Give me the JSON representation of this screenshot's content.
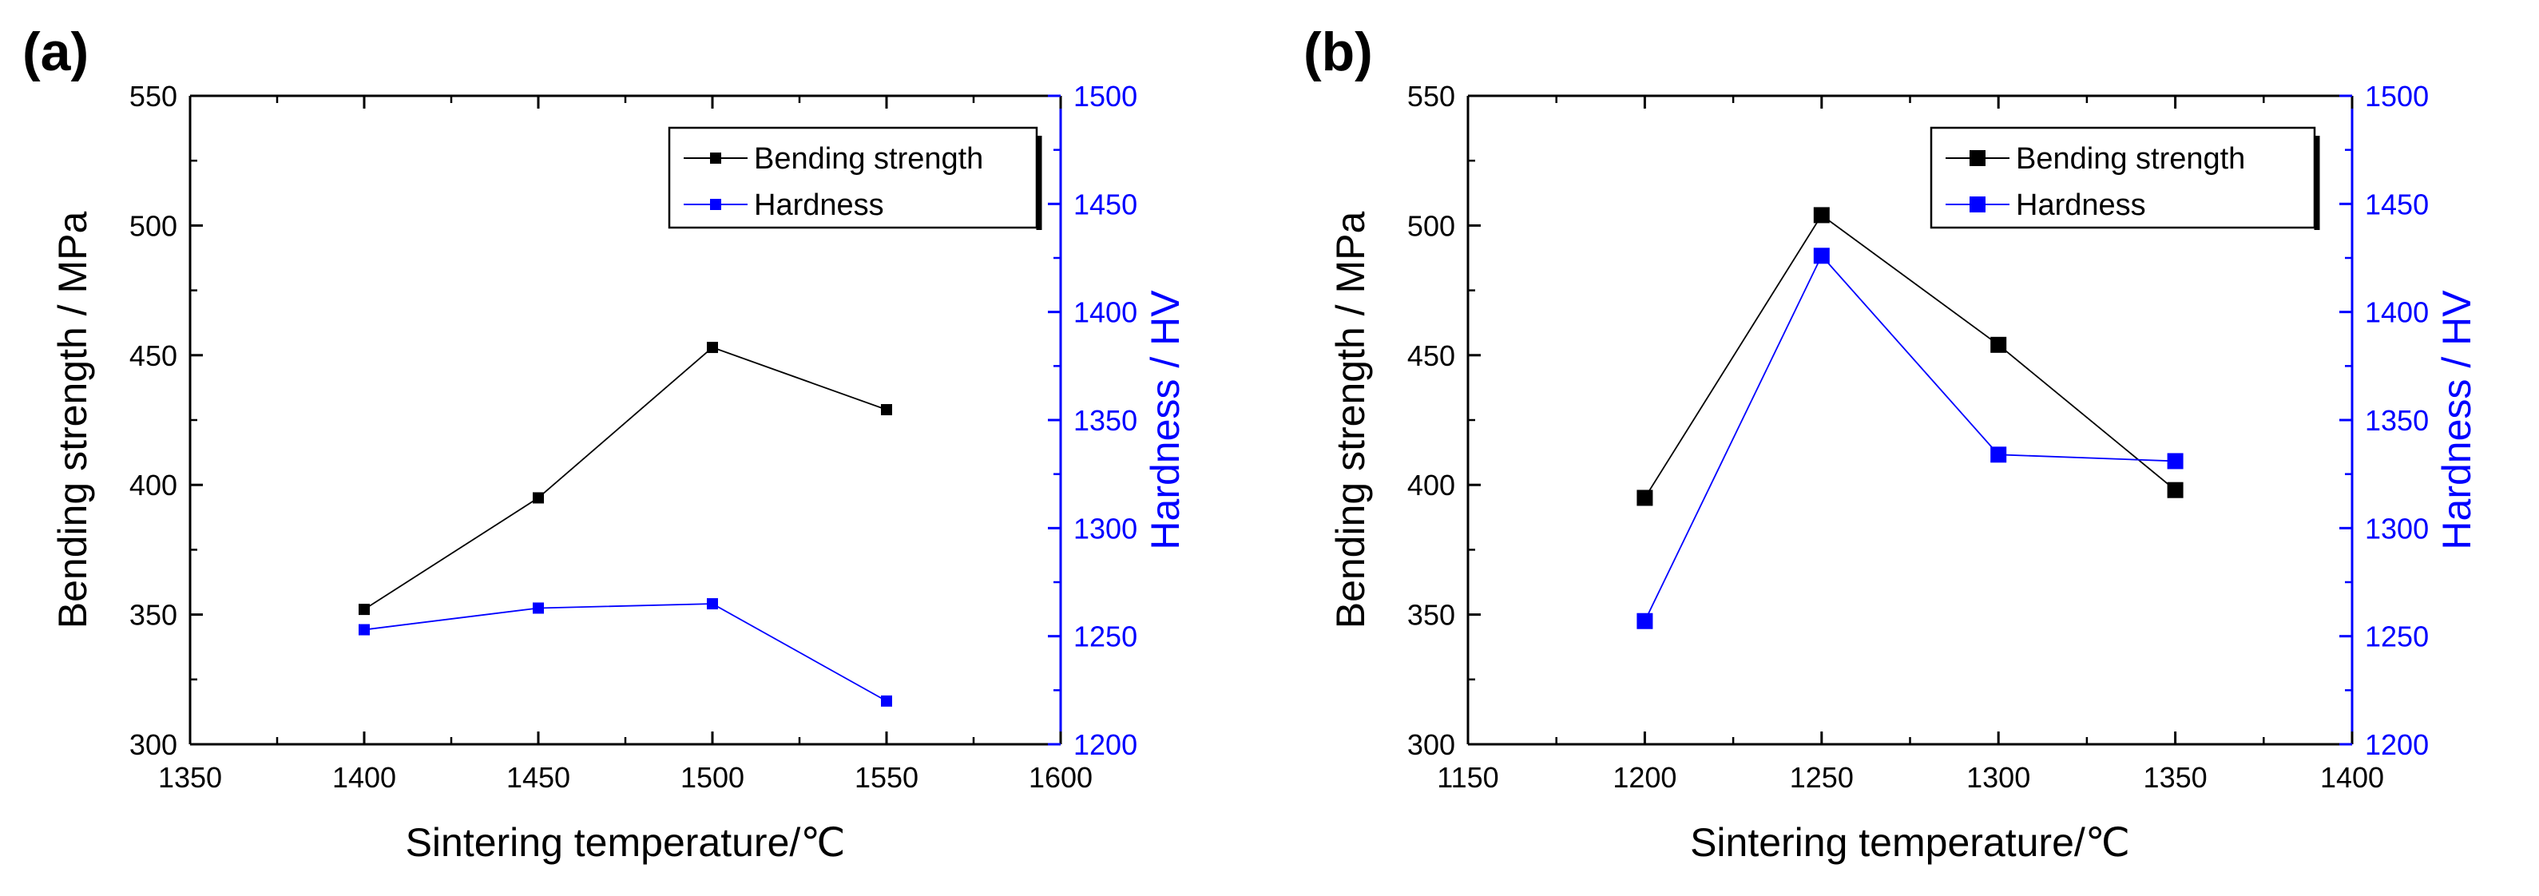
{
  "colors": {
    "bending": "#000000",
    "hardness": "#0000FF",
    "axis": "#000000",
    "right_axis": "#0000FF"
  },
  "chart_data": [
    {
      "panel": "(a)",
      "type": "line",
      "title": "",
      "xlabel": "Sintering temperature/℃",
      "ylabel": "Bending strength / MPa",
      "y2label": "Hardness / HV",
      "xlim": [
        1350,
        1600
      ],
      "ylim": [
        300,
        550
      ],
      "y2lim": [
        1200,
        1500
      ],
      "x_ticks": [
        1350,
        1400,
        1450,
        1500,
        1550,
        1600
      ],
      "y_ticks": [
        300,
        350,
        400,
        450,
        500,
        550
      ],
      "y2_ticks": [
        1200,
        1250,
        1300,
        1350,
        1400,
        1450,
        1500
      ],
      "legend_position": "top-right",
      "series": [
        {
          "name": "Bending strength",
          "axis": "left",
          "color": "#000000",
          "x": [
            1400,
            1450,
            1500,
            1550
          ],
          "values": [
            352,
            395,
            453,
            429
          ]
        },
        {
          "name": "Hardness",
          "axis": "right",
          "color": "#0000FF",
          "x": [
            1400,
            1450,
            1500,
            1550
          ],
          "values": [
            1253,
            1263,
            1265,
            1220
          ]
        }
      ]
    },
    {
      "panel": "(b)",
      "type": "line",
      "title": "",
      "xlabel": "Sintering temperature/℃",
      "ylabel": "Bending strength / MPa",
      "y2label": "Hardness / HV",
      "xlim": [
        1150,
        1400
      ],
      "ylim": [
        300,
        550
      ],
      "y2lim": [
        1200,
        1500
      ],
      "x_ticks": [
        1150,
        1200,
        1250,
        1300,
        1350,
        1400
      ],
      "y_ticks": [
        300,
        350,
        400,
        450,
        500,
        550
      ],
      "y2_ticks": [
        1200,
        1250,
        1300,
        1350,
        1400,
        1450,
        1500
      ],
      "legend_position": "top-right",
      "series": [
        {
          "name": "Bending strength",
          "axis": "left",
          "color": "#000000",
          "x": [
            1200,
            1250,
            1300,
            1350
          ],
          "values": [
            395,
            504,
            454,
            398
          ]
        },
        {
          "name": "Hardness",
          "axis": "right",
          "color": "#0000FF",
          "x": [
            1200,
            1250,
            1300,
            1350
          ],
          "values": [
            1257,
            1426,
            1334,
            1331
          ]
        }
      ]
    }
  ]
}
